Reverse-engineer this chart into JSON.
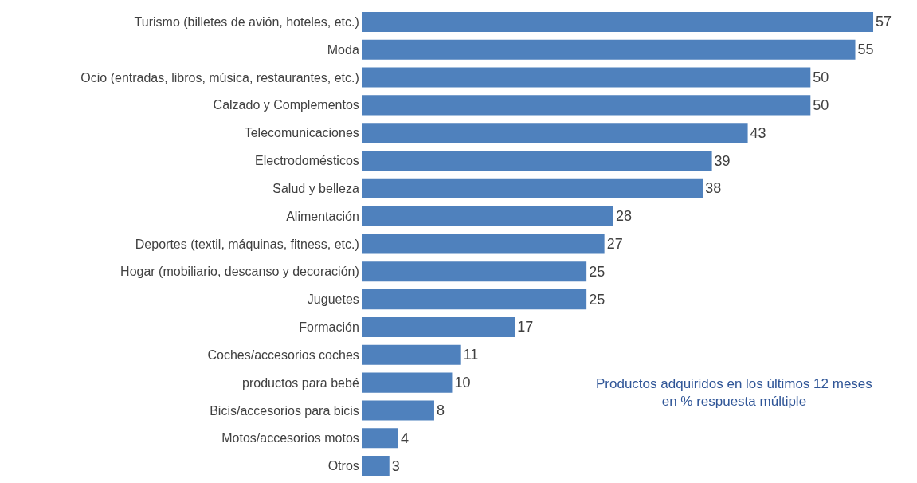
{
  "chart_data": {
    "type": "bar",
    "orientation": "horizontal",
    "data_labels": true,
    "categories": [
      "Turismo (billetes de avión, hoteles, etc.)",
      "Moda",
      "Ocio (entradas, libros, música, restaurantes, etc.)",
      "Calzado y Complementos",
      "Telecomunicaciones",
      "Electrodomésticos",
      "Salud y belleza",
      "Alimentación",
      "Deportes (textil, máquinas, fitness, etc.)",
      "Hogar (mobiliario, descanso y decoración)",
      "Juguetes",
      "Formación",
      "Coches/accesorios coches",
      "productos para bebé",
      "Bicis/accesorios para bicis",
      "Motos/accesorios motos",
      "Otros"
    ],
    "values": [
      57,
      55,
      50,
      50,
      43,
      39,
      38,
      28,
      27,
      25,
      25,
      17,
      11,
      10,
      8,
      4,
      3
    ],
    "color": "#4f81bd",
    "annotations": [
      "Productos adquiridos en los últimos 12 meses\nen % respuesta múltiple"
    ]
  }
}
